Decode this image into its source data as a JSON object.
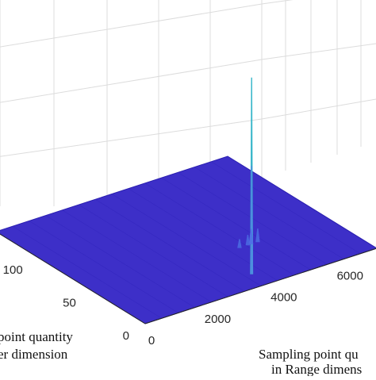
{
  "chart_data": {
    "type": "surface",
    "grid": true,
    "x_axis": {
      "label_lines": [
        "Sampling point qu",
        "in Range dimens"
      ],
      "ticks": [
        0,
        2000,
        4000,
        6000
      ],
      "tick_labels": [
        "0",
        "2000",
        "4000",
        "6000"
      ]
    },
    "y_axis": {
      "label_lines": [
        "point quantity",
        "er dimension"
      ],
      "ticks": [
        0,
        50,
        100
      ],
      "tick_labels": [
        "0",
        "50",
        "100"
      ]
    },
    "surface_color": "#3d2fc8",
    "peaks": [
      {
        "x": 3700,
        "y": 15,
        "height": 1.0,
        "color": "#30b4c8"
      },
      {
        "x": 3700,
        "y": 15,
        "height": 0.55,
        "color": "#4f8ee0"
      },
      {
        "x": 4650,
        "y": 45,
        "height": 0.09,
        "color": "#4f73e6"
      },
      {
        "x": 4550,
        "y": 45,
        "height": 0.06,
        "color": "#4a66e0"
      },
      {
        "x": 4300,
        "y": 45,
        "height": 0.05,
        "color": "#4a66e0"
      },
      {
        "x": 4850,
        "y": 45,
        "height": 0.08,
        "color": "#4a66e0"
      }
    ]
  }
}
